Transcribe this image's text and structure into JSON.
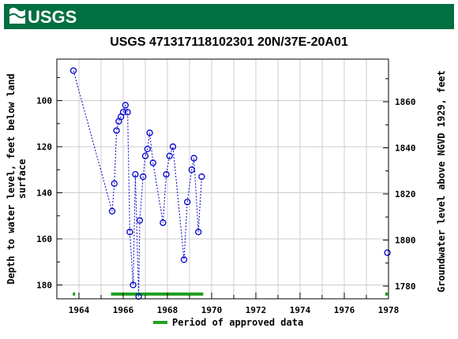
{
  "header": {
    "logo_text": "USGS",
    "bar_color": "#006f41"
  },
  "chart_data": {
    "type": "scatter",
    "title": "USGS 471317118102301 20N/37E-20A01",
    "ylabel_left": "Depth to water level, feet below land surface",
    "ylabel_left_lines": [
      "Depth to water level, feet below land",
      "surface"
    ],
    "ylabel_right": "Groundwater level above NGVD 1929, feet",
    "xlim": [
      1963.0,
      1978.0
    ],
    "ylim_left": [
      186,
      82
    ],
    "ylim_right": [
      1774.5,
      1878.5
    ],
    "x_ticks": [
      1964,
      1966,
      1968,
      1970,
      1972,
      1974,
      1976,
      1978
    ],
    "y_ticks_left": [
      100,
      120,
      140,
      160,
      180
    ],
    "y_ticks_right": [
      1780,
      1800,
      1820,
      1840,
      1860
    ],
    "grid": true,
    "legend_position": "bottom-center",
    "series": [
      {
        "name": "",
        "style": "points with dotted connecting line",
        "color": "#0000cc",
        "points": [
          [
            1963.75,
            87
          ],
          [
            1965.5,
            148
          ],
          [
            1965.6,
            136
          ],
          [
            1965.7,
            113
          ],
          [
            1965.8,
            109
          ],
          [
            1965.9,
            107
          ],
          [
            1966.0,
            105
          ],
          [
            1966.1,
            102
          ],
          [
            1966.2,
            105
          ],
          [
            1966.3,
            157
          ],
          [
            1966.45,
            180
          ],
          [
            1966.55,
            132
          ],
          [
            1966.7,
            185
          ],
          [
            1966.75,
            152
          ],
          [
            1966.9,
            133
          ],
          [
            1967.0,
            124
          ],
          [
            1967.1,
            121
          ],
          [
            1967.2,
            114
          ],
          [
            1967.35,
            127
          ],
          [
            1967.8,
            153
          ],
          [
            1967.95,
            132
          ],
          [
            1968.1,
            124
          ],
          [
            1968.25,
            120
          ],
          [
            1968.75,
            169
          ],
          [
            1968.9,
            144
          ],
          [
            1969.1,
            130
          ],
          [
            1969.2,
            125
          ],
          [
            1969.4,
            157
          ],
          [
            1969.55,
            133
          ]
        ],
        "isolated_points": [
          [
            1977.95,
            166
          ]
        ]
      }
    ],
    "approved_periods": [
      [
        1963.72,
        1963.82
      ],
      [
        1965.45,
        1969.62
      ],
      [
        1977.85,
        1977.97
      ]
    ],
    "approved_color": "#22a022",
    "legend": [
      {
        "label": "Period of approved data",
        "color": "#22a022"
      }
    ]
  }
}
